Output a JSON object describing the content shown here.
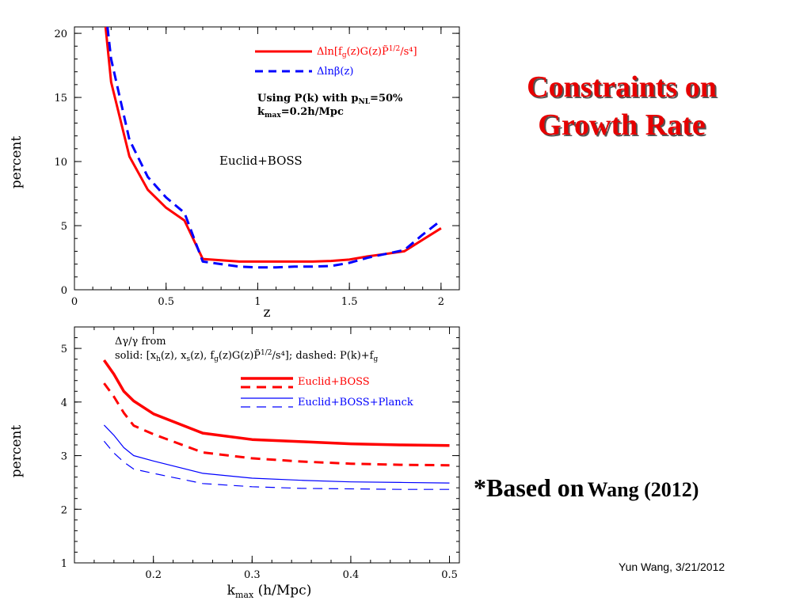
{
  "slide": {
    "title_line1": "Constraints on",
    "title_line2": "Growth Rate",
    "based_on_prefix": "*Based on",
    "based_on_ref": "Wang (2012)",
    "credit": "Yun Wang, 3/21/2012"
  },
  "colors": {
    "red": "#ff0000",
    "blue": "#0000ff",
    "title": "#e60000"
  },
  "chart_data": [
    {
      "type": "line",
      "xlabel": "z",
      "ylabel": "percent",
      "xlim": [
        0,
        2.1
      ],
      "ylim": [
        0,
        20.5
      ],
      "xticks": [
        "0",
        "0.5",
        "1",
        "1.5",
        "2"
      ],
      "yticks": [
        "0",
        "5",
        "10",
        "15",
        "20"
      ],
      "legend": {
        "position": "top-right",
        "entries": [
          "Δln[f_g(z)G(z)P̃_0^{1/2}/s⁴]",
          "Δlnβ(z)"
        ]
      },
      "annotations": [
        "Using P(k) with p_NL=50%",
        "k_max=0.2h/Mpc",
        "Euclid+BOSS"
      ],
      "series": [
        {
          "name": "Δln[f_g(z)G(z)P̃_0^{1/2}/s⁴]",
          "color": "#ff0000",
          "style": "solid",
          "x": [
            0.17,
            0.2,
            0.3,
            0.4,
            0.5,
            0.6,
            0.7,
            0.8,
            0.9,
            1.0,
            1.1,
            1.2,
            1.3,
            1.4,
            1.5,
            1.6,
            1.7,
            1.8,
            1.9,
            2.0
          ],
          "y": [
            20.5,
            16.2,
            10.4,
            7.8,
            6.4,
            5.4,
            2.4,
            2.3,
            2.2,
            2.2,
            2.2,
            2.2,
            2.2,
            2.25,
            2.35,
            2.6,
            2.8,
            3.0,
            3.9,
            4.8
          ]
        },
        {
          "name": "Δlnβ(z)",
          "color": "#0000ff",
          "style": "dashed",
          "x": [
            0.18,
            0.2,
            0.3,
            0.4,
            0.5,
            0.6,
            0.7,
            0.8,
            0.9,
            1.0,
            1.1,
            1.2,
            1.3,
            1.4,
            1.5,
            1.6,
            1.7,
            1.8,
            1.9,
            2.0
          ],
          "y": [
            20.5,
            18.0,
            11.7,
            8.8,
            7.2,
            6.0,
            2.2,
            2.0,
            1.8,
            1.75,
            1.75,
            1.8,
            1.8,
            1.85,
            2.1,
            2.5,
            2.8,
            3.1,
            4.3,
            5.4
          ]
        }
      ]
    },
    {
      "type": "line",
      "xlabel": "k_max (h/Mpc)",
      "ylabel": "percent",
      "xlim": [
        0.12,
        0.51
      ],
      "ylim": [
        1,
        5.4
      ],
      "xticks": [
        "0.2",
        "0.3",
        "0.4",
        "0.5"
      ],
      "yticks": [
        "1",
        "2",
        "3",
        "4",
        "5"
      ],
      "annotations": [
        "Δγ/γ from",
        "solid: [x_h(z), x_s(z), f_g(z)G(z)P̃_0^{1/2}/s⁴]; dashed: P(k)+f_g"
      ],
      "legend": {
        "position": "top-right",
        "entries": [
          "Euclid+BOSS",
          "Euclid+BOSS+Planck"
        ]
      },
      "series": [
        {
          "name": "Euclid+BOSS",
          "color": "#ff0000",
          "style": "solid-thick",
          "x": [
            0.15,
            0.16,
            0.17,
            0.18,
            0.2,
            0.25,
            0.3,
            0.35,
            0.4,
            0.45,
            0.5
          ],
          "y": [
            4.78,
            4.52,
            4.2,
            4.02,
            3.78,
            3.42,
            3.3,
            3.26,
            3.22,
            3.2,
            3.19
          ]
        },
        {
          "name": "Euclid+BOSS",
          "color": "#ff0000",
          "style": "dashed-thick",
          "x": [
            0.15,
            0.16,
            0.17,
            0.18,
            0.2,
            0.25,
            0.3,
            0.35,
            0.4,
            0.45,
            0.5
          ],
          "y": [
            4.35,
            4.1,
            3.8,
            3.56,
            3.4,
            3.06,
            2.95,
            2.89,
            2.85,
            2.83,
            2.82
          ]
        },
        {
          "name": "Euclid+BOSS+Planck",
          "color": "#0000ff",
          "style": "solid-thin",
          "x": [
            0.15,
            0.16,
            0.17,
            0.18,
            0.2,
            0.25,
            0.3,
            0.35,
            0.4,
            0.45,
            0.5
          ],
          "y": [
            3.57,
            3.38,
            3.15,
            3.0,
            2.9,
            2.67,
            2.58,
            2.54,
            2.51,
            2.5,
            2.49
          ]
        },
        {
          "name": "Euclid+BOSS+Planck",
          "color": "#0000ff",
          "style": "dashed-thin",
          "x": [
            0.15,
            0.16,
            0.17,
            0.18,
            0.2,
            0.25,
            0.3,
            0.35,
            0.4,
            0.45,
            0.5
          ],
          "y": [
            3.27,
            3.05,
            2.88,
            2.75,
            2.67,
            2.48,
            2.42,
            2.39,
            2.38,
            2.37,
            2.37
          ]
        }
      ]
    }
  ]
}
